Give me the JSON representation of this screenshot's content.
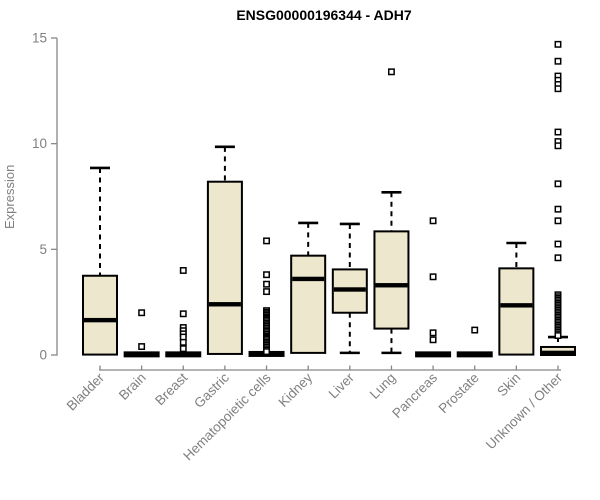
{
  "chart_data": {
    "type": "boxplot",
    "title": "ENSG00000196344 - ADH7",
    "ylabel": "Expression",
    "xlabel": "",
    "ylim": [
      0,
      15
    ],
    "yticks": [
      0,
      5,
      10,
      15
    ],
    "grid": false,
    "legend": "none",
    "colors": {
      "box_fill": "#EDE8CD",
      "box_stroke": "#000000",
      "median": "#000000",
      "whisker": "#000000",
      "axis": "#878787",
      "label": "#808080",
      "title": "#000000",
      "background": "#FFFFFF"
    },
    "categories": [
      "Bladder",
      "Brain",
      "Breast",
      "Gastric",
      "Hematopoietic cells",
      "Kidney",
      "Liver",
      "Lung",
      "Pancreas",
      "Prostate",
      "Skin",
      "Unknown / Other"
    ],
    "series": [
      {
        "label": "Bladder",
        "whisker_low": 0.02,
        "q1": 0.02,
        "median": 1.65,
        "q3": 3.75,
        "whisker_high": 8.85,
        "outliers": []
      },
      {
        "label": "Brain",
        "whisker_low": 0,
        "q1": 0,
        "median": 0.03,
        "q3": 0.06,
        "whisker_high": 0.06,
        "outliers": [
          2.0,
          0.4
        ]
      },
      {
        "label": "Breast",
        "whisker_low": 0,
        "q1": 0,
        "median": 0.03,
        "q3": 0.06,
        "whisker_high": 0.06,
        "outliers": [
          4.0,
          1.95,
          1.3,
          1.15,
          1.0,
          0.85,
          0.6,
          0.3
        ]
      },
      {
        "label": "Gastric",
        "whisker_low": 0.05,
        "q1": 0.05,
        "median": 2.4,
        "q3": 8.2,
        "whisker_high": 9.85,
        "outliers": []
      },
      {
        "label": "Hematopoietic cells",
        "whisker_low": 0,
        "q1": 0,
        "median": 0.05,
        "q3": 0.1,
        "whisker_high": 0.1,
        "outliers": [
          5.4,
          3.8,
          3.35,
          3.0,
          2.1,
          2.02,
          1.95,
          1.88,
          1.8,
          1.73,
          1.66,
          1.58,
          1.5,
          1.43,
          1.36,
          1.28,
          1.2,
          1.13,
          1.06,
          0.98,
          0.9,
          0.83,
          0.76,
          0.68,
          0.6,
          0.53,
          0.46,
          0.38,
          0.3,
          0.23,
          0.16
        ]
      },
      {
        "label": "Kidney",
        "whisker_low": 0.1,
        "q1": 0.1,
        "median": 3.6,
        "q3": 4.7,
        "whisker_high": 6.25,
        "outliers": []
      },
      {
        "label": "Liver",
        "whisker_low": 0.1,
        "q1": 2.0,
        "median": 3.1,
        "q3": 4.05,
        "whisker_high": 6.2,
        "outliers": []
      },
      {
        "label": "Lung",
        "whisker_low": 0.1,
        "q1": 1.25,
        "median": 3.3,
        "q3": 5.85,
        "whisker_high": 7.7,
        "outliers": [
          13.4
        ]
      },
      {
        "label": "Pancreas",
        "whisker_low": 0,
        "q1": 0,
        "median": 0.03,
        "q3": 0.06,
        "whisker_high": 0.06,
        "outliers": [
          6.35,
          3.7,
          1.05,
          0.72
        ]
      },
      {
        "label": "Prostate",
        "whisker_low": 0,
        "q1": 0,
        "median": 0.03,
        "q3": 0.06,
        "whisker_high": 0.06,
        "outliers": [
          1.18
        ]
      },
      {
        "label": "Skin",
        "whisker_low": 0.02,
        "q1": 0.02,
        "median": 2.35,
        "q3": 4.1,
        "whisker_high": 5.3,
        "outliers": []
      },
      {
        "label": "Unknown / Other",
        "whisker_low": 0,
        "q1": 0,
        "median": 0.1,
        "q3": 0.38,
        "whisker_high": 0.85,
        "outliers": [
          14.7,
          13.9,
          13.2,
          13.0,
          12.8,
          12.6,
          10.55,
          10.1,
          9.9,
          8.1,
          6.9,
          6.35,
          5.25,
          4.6,
          2.85,
          2.76,
          2.68,
          2.6,
          2.52,
          2.44,
          2.36,
          2.28,
          2.2,
          2.12,
          2.04,
          1.96,
          1.88,
          1.8,
          1.72,
          1.64,
          1.56,
          1.48,
          1.4,
          1.32,
          1.24,
          1.16,
          1.08,
          1.0,
          0.92
        ]
      }
    ]
  }
}
